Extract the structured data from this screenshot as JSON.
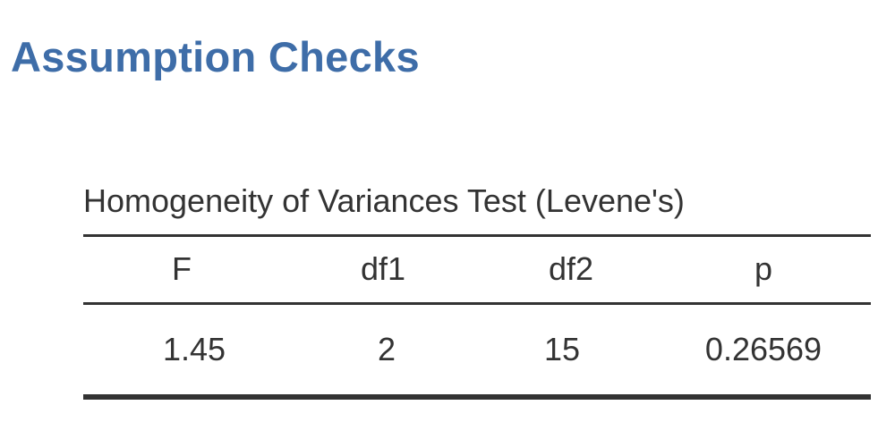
{
  "section": {
    "title": "Assumption Checks"
  },
  "table": {
    "caption": "Homogeneity of Variances Test (Levene's)",
    "columns": [
      "F",
      "df1",
      "df2",
      "p"
    ],
    "rows": [
      [
        "1.45",
        "2",
        "15",
        "0.26569"
      ]
    ]
  },
  "colors": {
    "title": "#3E6DA8",
    "text": "#333333",
    "rules": "#333333"
  }
}
